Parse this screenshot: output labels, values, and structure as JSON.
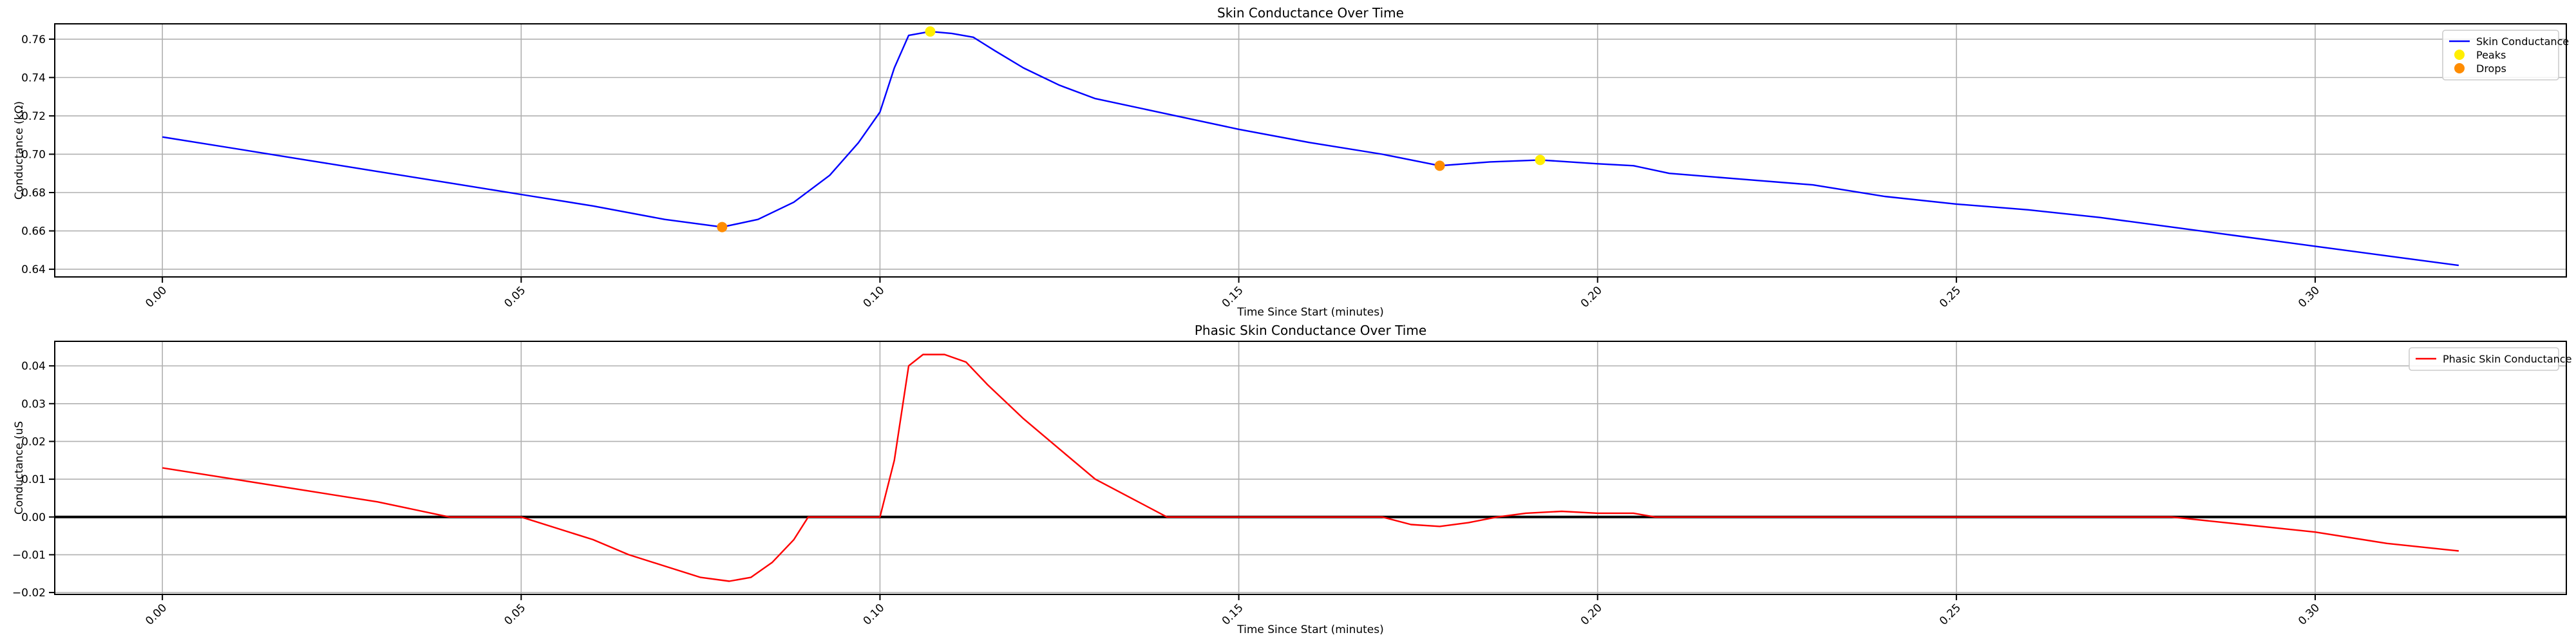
{
  "chart_data": [
    {
      "type": "line",
      "title": "Skin Conductance Over Time",
      "xlabel": "Time Since Start (minutes)",
      "ylabel": "Conductance (kΩ)",
      "xlim": [
        -0.015,
        0.335
      ],
      "ylim": [
        0.636,
        0.768
      ],
      "xticks": [
        "0.00",
        "0.05",
        "0.10",
        "0.15",
        "0.20",
        "0.25",
        "0.30"
      ],
      "yticks": [
        "0.64",
        "0.66",
        "0.68",
        "0.70",
        "0.72",
        "0.74",
        "0.76"
      ],
      "grid": true,
      "legend_position": "upper right",
      "legend": [
        "Skin Conductance",
        "Peaks",
        "Drops"
      ],
      "series": [
        {
          "name": "Skin Conductance",
          "color": "#0000ff",
          "x": [
            0.0,
            0.01,
            0.02,
            0.03,
            0.04,
            0.05,
            0.06,
            0.07,
            0.078,
            0.083,
            0.088,
            0.093,
            0.097,
            0.1,
            0.102,
            0.104,
            0.107,
            0.11,
            0.113,
            0.116,
            0.12,
            0.125,
            0.13,
            0.14,
            0.15,
            0.16,
            0.17,
            0.178,
            0.185,
            0.192,
            0.2,
            0.205,
            0.21,
            0.22,
            0.23,
            0.24,
            0.25,
            0.26,
            0.27,
            0.28,
            0.29,
            0.3,
            0.31,
            0.32
          ],
          "y": [
            0.709,
            0.703,
            0.697,
            0.691,
            0.685,
            0.679,
            0.673,
            0.666,
            0.662,
            0.666,
            0.675,
            0.689,
            0.706,
            0.722,
            0.745,
            0.762,
            0.764,
            0.763,
            0.761,
            0.754,
            0.745,
            0.736,
            0.729,
            0.721,
            0.713,
            0.706,
            0.7,
            0.694,
            0.696,
            0.697,
            0.695,
            0.694,
            0.69,
            0.687,
            0.684,
            0.678,
            0.674,
            0.671,
            0.667,
            0.662,
            0.657,
            0.652,
            0.647,
            0.642
          ]
        },
        {
          "name": "Peaks",
          "color": "#ffee00",
          "x": [
            0.107,
            0.192
          ],
          "y": [
            0.764,
            0.697
          ]
        },
        {
          "name": "Drops",
          "color": "#ff8c00",
          "x": [
            0.078,
            0.178
          ],
          "y": [
            0.662,
            0.694
          ]
        }
      ]
    },
    {
      "type": "line",
      "title": "Phasic Skin Conductance Over Time",
      "xlabel": "Time Since Start (minutes)",
      "ylabel": "Conductance (uS",
      "xlim": [
        -0.015,
        0.335
      ],
      "ylim": [
        -0.0205,
        0.0465
      ],
      "xticks": [
        "0.00",
        "0.05",
        "0.10",
        "0.15",
        "0.20",
        "0.25",
        "0.30"
      ],
      "yticks": [
        "−0.02",
        "−0.01",
        "0.00",
        "0.01",
        "0.02",
        "0.03",
        "0.04"
      ],
      "grid": true,
      "legend_position": "upper right",
      "legend": [
        "Phasic Skin Conductance"
      ],
      "hline": 0,
      "series": [
        {
          "name": "Phasic Skin Conductance",
          "color": "#ff0000",
          "x": [
            0.0,
            0.01,
            0.02,
            0.03,
            0.04,
            0.05,
            0.055,
            0.06,
            0.065,
            0.07,
            0.075,
            0.079,
            0.082,
            0.085,
            0.088,
            0.09,
            0.095,
            0.1,
            0.102,
            0.104,
            0.106,
            0.109,
            0.112,
            0.115,
            0.12,
            0.125,
            0.13,
            0.135,
            0.14,
            0.15,
            0.16,
            0.17,
            0.174,
            0.178,
            0.182,
            0.186,
            0.19,
            0.195,
            0.2,
            0.205,
            0.208,
            0.22,
            0.24,
            0.26,
            0.28,
            0.29,
            0.3,
            0.31,
            0.32
          ],
          "y": [
            0.013,
            0.01,
            0.007,
            0.004,
            0.0,
            0.0,
            -0.003,
            -0.006,
            -0.01,
            -0.013,
            -0.016,
            -0.017,
            -0.016,
            -0.012,
            -0.006,
            0.0,
            0.0,
            0.0,
            0.015,
            0.04,
            0.043,
            0.043,
            0.041,
            0.035,
            0.026,
            0.018,
            0.01,
            0.005,
            0.0,
            0.0,
            0.0,
            0.0,
            -0.002,
            -0.0025,
            -0.0015,
            0.0,
            0.001,
            0.0015,
            0.001,
            0.001,
            0.0,
            0.0,
            0.0,
            0.0,
            0.0,
            -0.002,
            -0.004,
            -0.007,
            -0.009
          ]
        }
      ]
    }
  ]
}
